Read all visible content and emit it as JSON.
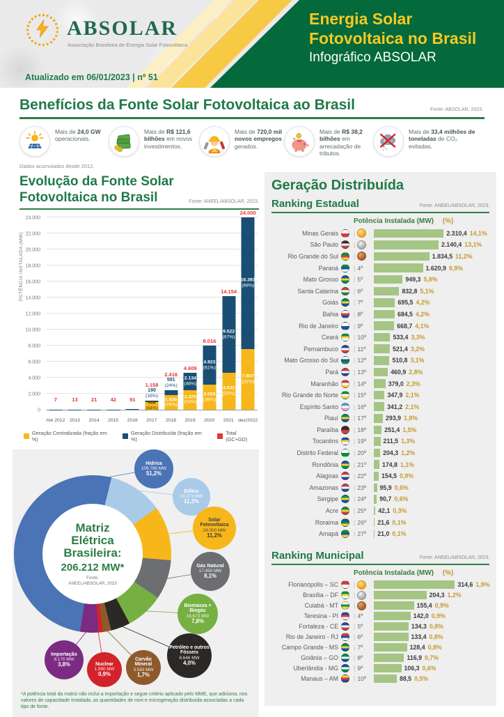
{
  "header": {
    "logo_name": "ABSOLAR",
    "logo_subtitle": "Associação Brasileira de Energia Solar Fotovoltaica",
    "updated": "Atualizado em 06/01/2023 | nº 51",
    "title_line1": "Energia Solar",
    "title_line2": "Fotovoltaica no Brasil",
    "subtitle": "Infográfico ABSOLAR"
  },
  "benefits": {
    "title": "Benefícios da Fonte Solar Fotovoltaica ao Brasil",
    "source": "Fonte: ABSOLAR, 2023.",
    "note": "Dados acumulados desde 2012.",
    "items": [
      {
        "icon": "solar-panel-icon",
        "segments": [
          [
            "Mais de ",
            0
          ],
          [
            "24,0 GW",
            1
          ],
          [
            " operacionais.",
            0
          ]
        ]
      },
      {
        "icon": "money-icon",
        "segments": [
          [
            "Mais de ",
            0
          ],
          [
            "R$ 121,6 bilhões",
            1
          ],
          [
            " em novos investimentos.",
            0
          ]
        ]
      },
      {
        "icon": "worker-icon",
        "segments": [
          [
            "Mais de ",
            0
          ],
          [
            "720,0 mil novos empregos",
            1
          ],
          [
            " gerados.",
            0
          ]
        ]
      },
      {
        "icon": "piggy-bank-icon",
        "segments": [
          [
            "Mais de ",
            0
          ],
          [
            "R$ 38,2 bilhões",
            1
          ],
          [
            " em arrecadação de tributos.",
            0
          ]
        ]
      },
      {
        "icon": "co2-icon",
        "segments": [
          [
            "Mais de ",
            0
          ],
          [
            "33,4 milhões de toneladas",
            1
          ],
          [
            " de CO₂ evitadas.",
            0
          ]
        ]
      }
    ]
  },
  "right_panel": {
    "title": "Geração Distribuída"
  },
  "chart_data": [
    {
      "type": "bar",
      "stacked": true,
      "title": "Evolução da Fonte Solar Fotovoltaica no Brasil",
      "title_lines": [
        "Evolução da Fonte Solar",
        "Fotovoltaica no Brasil"
      ],
      "source": "Fonte: ANEEL/ABSOLAR, 2023.",
      "ylabel": "POTÊNCIA INSTALADA  (MW)",
      "ylim": [
        0,
        24000
      ],
      "yticks": [
        "0",
        "2.000",
        "4.000",
        "6.000",
        "8.000",
        "10.000",
        "12.000",
        "14.000",
        "16.000",
        "18.000",
        "20.000",
        "22.000",
        "24.000"
      ],
      "legend": [
        {
          "label": "Geração Centralizada (fração em %)",
          "color": "#F7B71B"
        },
        {
          "label": "Geração Distribuída (fração em %)",
          "color": "#1A4E74"
        },
        {
          "label": "Total (GC+GD)",
          "color": "#E8352E"
        }
      ],
      "bars": [
        {
          "cat": "Até 2012",
          "total": 7,
          "total_label": "7"
        },
        {
          "cat": "2013",
          "total": 13,
          "total_label": "13"
        },
        {
          "cat": "2014",
          "total": 21,
          "total_label": "21"
        },
        {
          "cat": "2015",
          "total": 42,
          "total_label": "42"
        },
        {
          "cat": "2016",
          "total": 91,
          "total_label": "91"
        },
        {
          "cat": "2017",
          "total": 1158,
          "total_label": "1.158",
          "gc": 968,
          "gd": 190,
          "gc_label": [
            "968",
            "(84%)"
          ],
          "gd_label": [
            "190",
            "(16%)"
          ],
          "gd_above": true,
          "gc_dark": true
        },
        {
          "cat": "2018",
          "total": 2416,
          "total_label": "2.416",
          "gc": 1825,
          "gd": 591,
          "gc_label": [
            "1.825",
            "(76%)"
          ],
          "gd_label": [
            "591",
            "(24%)"
          ],
          "gd_above": true
        },
        {
          "cat": "2019",
          "total": 4609,
          "total_label": "4.609",
          "gc": 2475,
          "gd": 2134,
          "gc_label": [
            "2.475",
            "(54%)"
          ],
          "gd_label": [
            "2.134",
            "(46%)"
          ]
        },
        {
          "cat": "2020",
          "total": 8016,
          "total_label": "8.016",
          "gc": 3093,
          "gd": 4923,
          "gc_label": [
            "3.093",
            "(39%)"
          ],
          "gd_label": [
            "4.923",
            "(61%)"
          ]
        },
        {
          "cat": "2021",
          "total": 14154,
          "total_label": "14.154",
          "gc": 4632,
          "gd": 9522,
          "gc_label": [
            "4.632",
            "(33%)"
          ],
          "gd_label": [
            "9.522",
            "(67%)"
          ]
        },
        {
          "cat": "dez/2022",
          "total": 24000,
          "total_label": "24.000",
          "gc": 7607,
          "gd": 16393,
          "gc_label": [
            "7.607",
            "(32%)"
          ],
          "gd_label": [
            "16.393",
            "(68%)"
          ]
        }
      ]
    },
    {
      "type": "pie",
      "donut": true,
      "center_lines": [
        "Matriz",
        "Elétrica",
        "Brasileira:"
      ],
      "total_label": "206.212 MW*",
      "source_lines": [
        "Fonte:",
        "ANEEL/ABSOLAR, 2023"
      ],
      "footnote": "*A potência total da matriz não inclui a importação e segue critério aplicado pelo MME, que adiciona, nos valores de capacidade instalada, as quantidades de mini e microgeração distribuída associadas a cada tipo de fonte.",
      "start_angle": 14,
      "slices": [
        {
          "name": "Eólica",
          "mw": "24.073 MW",
          "pct": "11,2%",
          "value": 11.2,
          "color": "#A9CBE8",
          "text": "#ffffff"
        },
        {
          "name": "Solar Fotovoltaica",
          "mw": "24.000 MW",
          "pct": "11,2%",
          "value": 11.2,
          "color": "#F7B71B",
          "text": "#3b3b3b"
        },
        {
          "name": "Gás Natural",
          "mw": "17.450 MW",
          "pct": "8,1%",
          "value": 8.1,
          "color": "#6D6E71",
          "text": "#ffffff"
        },
        {
          "name": "Biomassa + Biogás",
          "mw": "16.673 MW",
          "pct": "7,8%",
          "value": 7.8,
          "color": "#76B043",
          "text": "#ffffff"
        },
        {
          "name": "Petróleo e outros Fósseis",
          "mw": "8.646 MW",
          "pct": "4,0%",
          "value": 4.0,
          "color": "#2B2826",
          "text": "#ffffff"
        },
        {
          "name": "Carvão Mineral",
          "mw": "3.583 MW",
          "pct": "1,7%",
          "value": 1.7,
          "color": "#8F5A2B",
          "text": "#ffffff"
        },
        {
          "name": "Nuclear",
          "mw": "1.990 MW",
          "pct": "0,9%",
          "value": 0.9,
          "color": "#D2232A",
          "text": "#ffffff"
        },
        {
          "name": "Importação",
          "mw": "8.170 MW",
          "pct": "3,8%",
          "value": 3.8,
          "color": "#7C2B83",
          "text": "#ffffff"
        },
        {
          "name": "Hídrica",
          "mw": "109.796 MW",
          "pct": "51,2%",
          "value": 51.2,
          "color": "#4A74B5",
          "text": "#ffffff"
        }
      ]
    },
    {
      "type": "bar",
      "orientation": "horizontal",
      "title": "Ranking Estadual",
      "source": "Fonte: ANEEL/ABSOLAR, 2023.",
      "col_mw": "Potência Instalada (MW)",
      "col_pct": "(%)",
      "max": 2310.4,
      "rows": [
        {
          "name": "Minas Gerais",
          "rank": "1º",
          "medal": "gold",
          "value": 2310.4,
          "value_label": "2.310,4",
          "pct_label": "14,1%",
          "flag": [
            "#ffffff",
            "#D43F3F"
          ]
        },
        {
          "name": "São Paulo",
          "rank": "2º",
          "medal": "silver",
          "value": 2140.4,
          "value_label": "2.140,4",
          "pct_label": "13,1%",
          "flag": [
            "#2E2E2E",
            "#ffffff",
            "#D43F3F"
          ]
        },
        {
          "name": "Rio Grande do Sul",
          "rank": "3º",
          "medal": "bronze",
          "value": 1834.5,
          "value_label": "1.834,5",
          "pct_label": "11,2%",
          "flag": [
            "#00923F",
            "#D43F3F",
            "#F6D042"
          ]
        },
        {
          "name": "Paraná",
          "rank": "4º",
          "value": 1620.9,
          "value_label": "1.620,9",
          "pct_label": "9,9%",
          "flag": [
            "#00923F",
            "#1F4F9F",
            "#ffffff"
          ]
        },
        {
          "name": "Mato Grosso",
          "rank": "5º",
          "value": 949.3,
          "value_label": "949,3",
          "pct_label": "5,8%",
          "flag": [
            "#1F4F9F",
            "#F6D042",
            "#00923F"
          ]
        },
        {
          "name": "Santa Catarina",
          "rank": "6º",
          "value": 832.8,
          "value_label": "832,8",
          "pct_label": "5,1%",
          "flag": [
            "#D43F3F",
            "#ffffff",
            "#00923F"
          ]
        },
        {
          "name": "Goiás",
          "rank": "7º",
          "value": 695.5,
          "value_label": "695,5",
          "pct_label": "4,2%",
          "flag": [
            "#00923F",
            "#F6D042",
            "#1F4F9F"
          ]
        },
        {
          "name": "Bahia",
          "rank": "8º",
          "value": 684.5,
          "value_label": "684,5",
          "pct_label": "4,2%",
          "flag": [
            "#ffffff",
            "#D43F3F",
            "#1F4F9F"
          ]
        },
        {
          "name": "Rio de Janeiro",
          "rank": "9º",
          "value": 668.7,
          "value_label": "668,7",
          "pct_label": "4,1%",
          "flag": [
            "#ffffff",
            "#1F4F9F"
          ]
        },
        {
          "name": "Ceará",
          "rank": "10º",
          "value": 533.4,
          "value_label": "533,4",
          "pct_label": "3,3%",
          "flag": [
            "#00923F",
            "#F6D042",
            "#ffffff"
          ]
        },
        {
          "name": "Pernambuco",
          "rank": "11º",
          "value": 521.4,
          "value_label": "521,4",
          "pct_label": "3,2%",
          "flag": [
            "#1F4F9F",
            "#ffffff",
            "#D43F3F"
          ]
        },
        {
          "name": "Mato Grosso do Sul",
          "rank": "12º",
          "value": 510.8,
          "value_label": "510,8",
          "pct_label": "3,1%",
          "flag": [
            "#ffffff",
            "#1F4F9F",
            "#00923F"
          ]
        },
        {
          "name": "Pará",
          "rank": "13º",
          "value": 460.9,
          "value_label": "460,9",
          "pct_label": "2,8%",
          "flag": [
            "#D43F3F",
            "#ffffff",
            "#1F4F9F"
          ]
        },
        {
          "name": "Maranhão",
          "rank": "14º",
          "value": 379.0,
          "value_label": "379,0",
          "pct_label": "2,3%",
          "flag": [
            "#D43F3F",
            "#ffffff",
            "#F6D042"
          ]
        },
        {
          "name": "Rio Grande do Norte",
          "rank": "15º",
          "value": 347.9,
          "value_label": "347,9",
          "pct_label": "2,1%",
          "flag": [
            "#00923F",
            "#ffffff",
            "#F6D042"
          ]
        },
        {
          "name": "Espírito Santo",
          "rank": "16º",
          "value": 341.2,
          "value_label": "341,2",
          "pct_label": "2,1%",
          "flag": [
            "#4DA3DD",
            "#ffffff",
            "#E8A0C0"
          ]
        },
        {
          "name": "Piauí",
          "rank": "17º",
          "value": 293.9,
          "value_label": "293,9",
          "pct_label": "1,8%",
          "flag": [
            "#00923F",
            "#F6D042",
            "#1F4F9F"
          ]
        },
        {
          "name": "Paraíba",
          "rank": "18º",
          "value": 251.4,
          "value_label": "251,4",
          "pct_label": "1,5%",
          "flag": [
            "#2E2E2E",
            "#D43F3F"
          ]
        },
        {
          "name": "Tocantins",
          "rank": "19º",
          "value": 211.5,
          "value_label": "211,5",
          "pct_label": "1,3%",
          "flag": [
            "#1F4F9F",
            "#F6D042",
            "#ffffff"
          ]
        },
        {
          "name": "Distrito Federal",
          "rank": "20º",
          "value": 204.3,
          "value_label": "204,3",
          "pct_label": "1,2%",
          "flag": [
            "#ffffff",
            "#00923F"
          ]
        },
        {
          "name": "Rondônia",
          "rank": "21º",
          "value": 174.8,
          "value_label": "174,8",
          "pct_label": "1,1%",
          "flag": [
            "#1F4F9F",
            "#F6D042",
            "#00923F"
          ]
        },
        {
          "name": "Alagoas",
          "rank": "22º",
          "value": 154.5,
          "value_label": "154,5",
          "pct_label": "0,9%",
          "flag": [
            "#D43F3F",
            "#ffffff",
            "#1F4F9F"
          ]
        },
        {
          "name": "Amazonas",
          "rank": "23º",
          "value": 95.9,
          "value_label": "95,9",
          "pct_label": "0,6%",
          "flag": [
            "#D43F3F",
            "#ffffff",
            "#1F4F9F"
          ]
        },
        {
          "name": "Sergipe",
          "rank": "24º",
          "value": 90.7,
          "value_label": "90,7",
          "pct_label": "0,6%",
          "flag": [
            "#00923F",
            "#F6D042",
            "#1F4F9F"
          ]
        },
        {
          "name": "Acre",
          "rank": "25º",
          "value": 42.1,
          "value_label": "42,1",
          "pct_label": "0,3%",
          "flag": [
            "#00923F",
            "#F6D042",
            "#D43F3F"
          ]
        },
        {
          "name": "Roraima",
          "rank": "26º",
          "value": 21.6,
          "value_label": "21,6",
          "pct_label": "0,1%",
          "flag": [
            "#1F4F9F",
            "#00923F",
            "#F6D042"
          ]
        },
        {
          "name": "Amapá",
          "rank": "27º",
          "value": 21.0,
          "value_label": "21,0",
          "pct_label": "0,1%",
          "flag": [
            "#00923F",
            "#1F4F9F",
            "#F6D042"
          ]
        }
      ]
    },
    {
      "type": "bar",
      "orientation": "horizontal",
      "title": "Ranking Municipal",
      "source": "Fonte: ANEEL/ABSOLAR, 2023.",
      "col_mw": "Potência Instalada (MW)",
      "col_pct": "(%)",
      "max": 314.6,
      "rows": [
        {
          "name": "Florianópolis – SC",
          "rank": "1º",
          "medal": "gold",
          "value": 314.6,
          "value_label": "314,6",
          "pct_label": "1,9%",
          "flag": [
            "#D43F3F",
            "#ffffff"
          ]
        },
        {
          "name": "Brasília – DF",
          "rank": "2º",
          "medal": "silver",
          "value": 204.3,
          "value_label": "204,3",
          "pct_label": "1,2%",
          "flag": [
            "#00923F",
            "#F6D042",
            "#ffffff"
          ]
        },
        {
          "name": "Cuiabá - MT",
          "rank": "3º",
          "medal": "bronze",
          "value": 155.4,
          "value_label": "155,4",
          "pct_label": "0,9%",
          "flag": [
            "#ffffff",
            "#00923F",
            "#F6D042"
          ]
        },
        {
          "name": "Teresina - PI",
          "rank": "4º",
          "value": 142.0,
          "value_label": "142,0",
          "pct_label": "0,9%",
          "flag": [
            "#1F4F9F",
            "#D43F3F",
            "#ffffff"
          ]
        },
        {
          "name": "Fortaleza - CE",
          "rank": "5º",
          "value": 134.3,
          "value_label": "134,3",
          "pct_label": "0,8%",
          "flag": [
            "#1F4F9F",
            "#ffffff",
            "#D43F3F"
          ]
        },
        {
          "name": "Rio de Janeiro - RJ",
          "rank": "6º",
          "value": 133.4,
          "value_label": "133,4",
          "pct_label": "0,8%",
          "flag": [
            "#D43F3F",
            "#1F4F9F",
            "#ffffff"
          ]
        },
        {
          "name": "Campo Grande - MS",
          "rank": "7º",
          "value": 128.4,
          "value_label": "128,4",
          "pct_label": "0,8%",
          "flag": [
            "#00923F",
            "#F6D042",
            "#1F4F9F"
          ]
        },
        {
          "name": "Goiânia – GO",
          "rank": "8º",
          "value": 116.9,
          "value_label": "116,9",
          "pct_label": "0,7%",
          "flag": [
            "#00923F",
            "#ffffff",
            "#1F4F9F"
          ]
        },
        {
          "name": "Uberlândia - MG",
          "rank": "9º",
          "value": 106.3,
          "value_label": "106,3",
          "pct_label": "0,6%",
          "flag": [
            "#1F4F9F",
            "#ffffff",
            "#00923F"
          ]
        },
        {
          "name": "Manaus – AM",
          "rank": "10º",
          "value": 88.5,
          "value_label": "88,5",
          "pct_label": "0,5%",
          "flag": [
            "#F6D042",
            "#D43F3F",
            "#1F4F9F"
          ]
        }
      ]
    }
  ]
}
